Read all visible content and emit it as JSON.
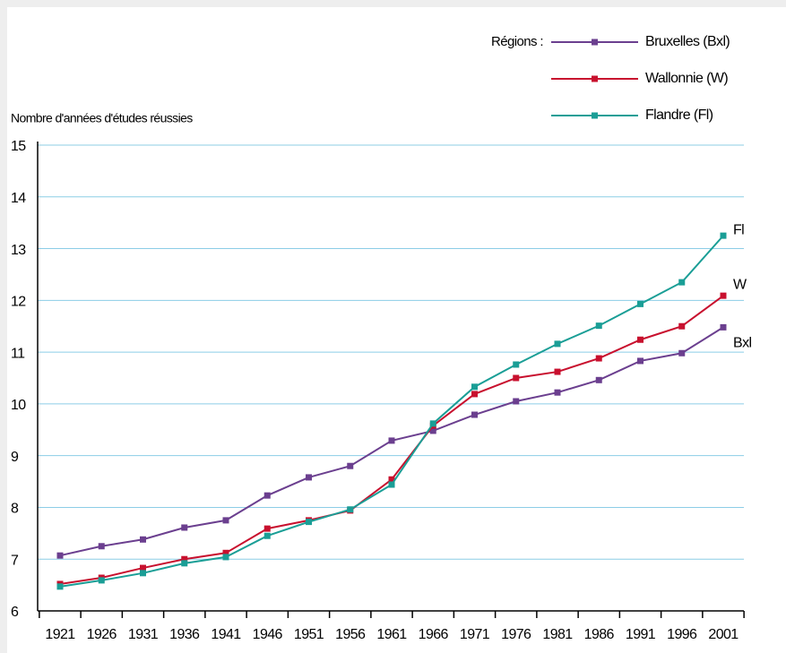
{
  "chart_data": {
    "type": "line",
    "y_axis_label": "Nombre d'années d'études réussies",
    "legend_title": "Régions :",
    "categories": [
      "1921",
      "1926",
      "1931",
      "1936",
      "1941",
      "1946",
      "1951",
      "1956",
      "1961",
      "1966",
      "1971",
      "1976",
      "1981",
      "1986",
      "1991",
      "1996",
      "2001"
    ],
    "series": [
      {
        "name": "Bruxelles (Bxl)",
        "end_label": "Bxl",
        "color": "#6b3f8f",
        "values": [
          7.07,
          7.25,
          7.38,
          7.61,
          7.75,
          8.23,
          8.58,
          8.8,
          9.29,
          9.48,
          9.79,
          10.05,
          10.22,
          10.46,
          10.83,
          10.98,
          11.48
        ]
      },
      {
        "name": "Wallonnie (W)",
        "end_label": "W",
        "color": "#c8102e",
        "values": [
          6.52,
          6.64,
          6.83,
          7.0,
          7.12,
          7.59,
          7.75,
          7.94,
          8.54,
          9.58,
          10.19,
          10.5,
          10.62,
          10.88,
          11.24,
          11.5,
          12.09
        ]
      },
      {
        "name": "Flandre (Fl)",
        "end_label": "Fl",
        "color": "#1a9e96",
        "values": [
          6.47,
          6.59,
          6.73,
          6.92,
          7.04,
          7.45,
          7.72,
          7.96,
          8.44,
          9.62,
          10.33,
          10.76,
          11.16,
          11.51,
          11.93,
          12.35,
          13.25
        ]
      }
    ],
    "ylim": [
      6,
      15
    ],
    "yticks": [
      6,
      7,
      8,
      9,
      10,
      11,
      12,
      13,
      14,
      15
    ],
    "grid": true
  }
}
